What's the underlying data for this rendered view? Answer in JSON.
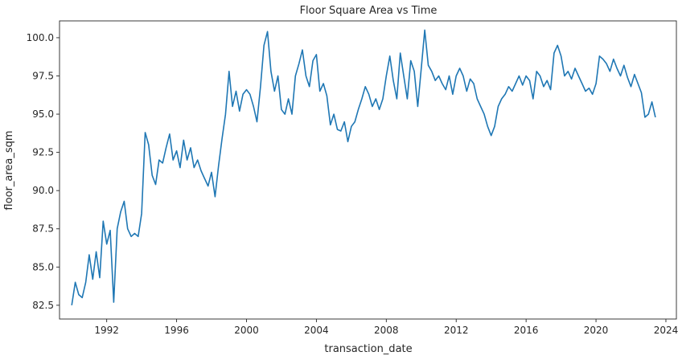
{
  "chart_data": {
    "type": "line",
    "title": "Floor Square Area vs Time",
    "xlabel": "transaction_date",
    "ylabel": "floor_area_sqm",
    "xlim": [
      1989.3,
      2024.6
    ],
    "ylim": [
      81.6,
      101.1
    ],
    "grid": false,
    "x_ticks": [
      1992,
      1996,
      2000,
      2004,
      2008,
      2012,
      2016,
      2020,
      2024
    ],
    "x_tick_labels": [
      "1992",
      "1996",
      "2000",
      "2004",
      "2008",
      "2012",
      "2016",
      "2020",
      "2024"
    ],
    "y_ticks": [
      82.5,
      85.0,
      87.5,
      90.0,
      92.5,
      95.0,
      97.5,
      100.0
    ],
    "y_tick_labels": [
      "82.5",
      "85.0",
      "87.5",
      "90.0",
      "92.5",
      "95.0",
      "97.5",
      "100.0"
    ],
    "series": [
      {
        "name": "floor_area_sqm",
        "color": "#1f77b4",
        "x": [
          1990.0,
          1990.2,
          1990.4,
          1990.6,
          1990.8,
          1991.0,
          1991.2,
          1991.4,
          1991.6,
          1991.8,
          1992.0,
          1992.2,
          1992.4,
          1992.6,
          1992.8,
          1993.0,
          1993.2,
          1993.4,
          1993.6,
          1993.8,
          1994.0,
          1994.2,
          1994.4,
          1994.6,
          1994.8,
          1995.0,
          1995.2,
          1995.4,
          1995.6,
          1995.8,
          1996.0,
          1996.2,
          1996.4,
          1996.6,
          1996.8,
          1997.0,
          1997.2,
          1997.4,
          1997.6,
          1997.8,
          1998.0,
          1998.2,
          1998.4,
          1998.6,
          1998.8,
          1999.0,
          1999.2,
          1999.4,
          1999.6,
          1999.8,
          2000.0,
          2000.2,
          2000.4,
          2000.6,
          2000.8,
          2001.0,
          2001.2,
          2001.4,
          2001.6,
          2001.8,
          2002.0,
          2002.2,
          2002.4,
          2002.6,
          2002.8,
          2003.0,
          2003.2,
          2003.4,
          2003.6,
          2003.8,
          2004.0,
          2004.2,
          2004.4,
          2004.6,
          2004.8,
          2005.0,
          2005.2,
          2005.4,
          2005.6,
          2005.8,
          2006.0,
          2006.2,
          2006.4,
          2006.6,
          2006.8,
          2007.0,
          2007.2,
          2007.4,
          2007.6,
          2007.8,
          2008.0,
          2008.2,
          2008.4,
          2008.6,
          2008.8,
          2009.0,
          2009.2,
          2009.4,
          2009.6,
          2009.8,
          2010.0,
          2010.2,
          2010.4,
          2010.6,
          2010.8,
          2011.0,
          2011.2,
          2011.4,
          2011.6,
          2011.8,
          2012.0,
          2012.2,
          2012.4,
          2012.6,
          2012.8,
          2013.0,
          2013.2,
          2013.4,
          2013.6,
          2013.8,
          2014.0,
          2014.2,
          2014.4,
          2014.6,
          2014.8,
          2015.0,
          2015.2,
          2015.4,
          2015.6,
          2015.8,
          2016.0,
          2016.2,
          2016.4,
          2016.6,
          2016.8,
          2017.0,
          2017.2,
          2017.4,
          2017.6,
          2017.8,
          2018.0,
          2018.2,
          2018.4,
          2018.6,
          2018.8,
          2019.0,
          2019.2,
          2019.4,
          2019.6,
          2019.8,
          2020.0,
          2020.2,
          2020.4,
          2020.6,
          2020.8,
          2021.0,
          2021.2,
          2021.4,
          2021.6,
          2021.8,
          2022.0,
          2022.2,
          2022.4,
          2022.6,
          2022.8,
          2023.0,
          2023.2,
          2023.4
        ],
        "values": [
          82.5,
          84.0,
          83.2,
          83.0,
          84.0,
          85.8,
          84.2,
          86.0,
          84.3,
          88.0,
          86.5,
          87.4,
          82.7,
          87.5,
          88.6,
          89.3,
          87.5,
          87.0,
          87.2,
          87.0,
          88.5,
          93.8,
          93.0,
          91.0,
          90.4,
          92.0,
          91.8,
          92.8,
          93.7,
          92.0,
          92.6,
          91.5,
          93.3,
          92.0,
          92.8,
          91.5,
          92.0,
          91.3,
          90.8,
          90.3,
          91.2,
          89.6,
          91.6,
          93.4,
          95.0,
          97.8,
          95.5,
          96.5,
          95.2,
          96.3,
          96.6,
          96.3,
          95.5,
          94.5,
          96.8,
          99.5,
          100.4,
          97.8,
          96.5,
          97.5,
          95.3,
          95.0,
          96.0,
          95.0,
          97.5,
          98.3,
          99.2,
          97.5,
          96.8,
          98.5,
          98.9,
          96.5,
          97.0,
          96.2,
          94.3,
          95.0,
          94.0,
          93.9,
          94.5,
          93.2,
          94.2,
          94.5,
          95.3,
          96.0,
          96.8,
          96.3,
          95.5,
          96.0,
          95.3,
          96.0,
          97.5,
          98.8,
          97.2,
          96.0,
          99.0,
          97.5,
          96.0,
          98.5,
          97.8,
          95.5,
          98.0,
          100.5,
          98.2,
          97.8,
          97.2,
          97.5,
          97.0,
          96.6,
          97.5,
          96.3,
          97.5,
          98.0,
          97.5,
          96.5,
          97.3,
          97.0,
          96.0,
          95.5,
          95.0,
          94.2,
          93.6,
          94.2,
          95.5,
          96.0,
          96.3,
          96.8,
          96.5,
          97.0,
          97.5,
          96.9,
          97.5,
          97.2,
          96.0,
          97.8,
          97.5,
          96.8,
          97.2,
          96.6,
          99.0,
          99.5,
          98.8,
          97.5,
          97.8,
          97.3,
          98.0,
          97.5,
          97.0,
          96.5,
          96.7,
          96.3,
          97.0,
          98.8,
          98.6,
          98.3,
          97.8,
          98.6,
          98.0,
          97.5,
          98.2,
          97.4,
          96.8,
          97.6,
          97.0,
          96.4,
          94.8,
          95.0,
          95.8,
          94.8
        ]
      }
    ]
  }
}
